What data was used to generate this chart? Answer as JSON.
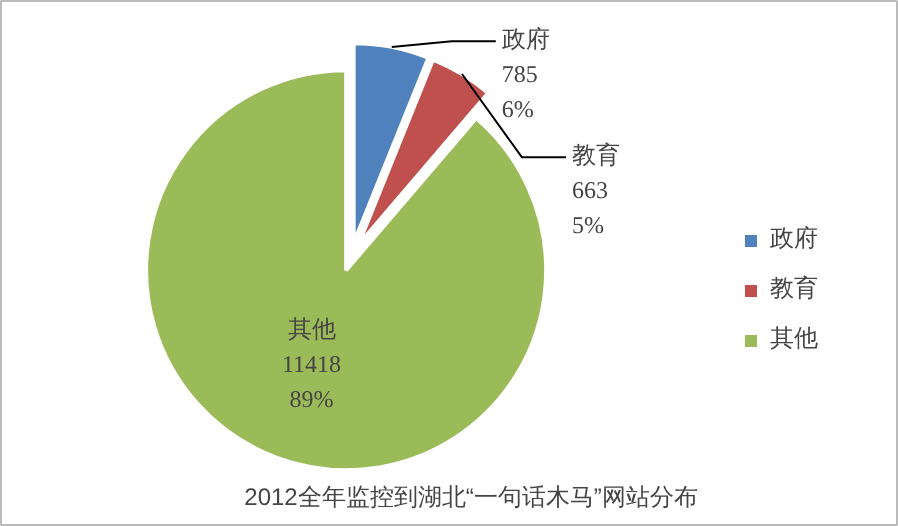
{
  "chart_data": {
    "type": "pie",
    "title": "2012全年监控到湖北“一句话木马”网站分布",
    "categories": [
      "政府",
      "教育",
      "其他"
    ],
    "values": [
      785,
      663,
      11418
    ],
    "value_labels": [
      "785\n6%",
      "663\n5%",
      "11418\n89%"
    ],
    "colors": [
      "#4f81bd",
      "#c0504d",
      "#9bbb59"
    ],
    "legend": "right"
  }
}
